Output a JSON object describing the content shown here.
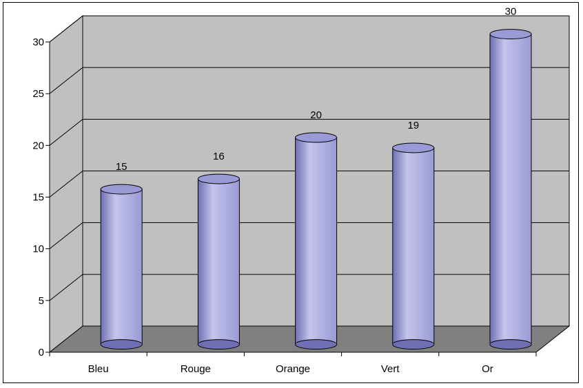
{
  "chart_data": {
    "type": "bar",
    "style": "3d-cylinder",
    "categories": [
      "Bleu",
      "Rouge",
      "Orange",
      "Vert",
      "Or"
    ],
    "values": [
      15,
      16,
      20,
      19,
      30
    ],
    "data_labels": [
      "15",
      "16",
      "20",
      "19",
      "30"
    ],
    "title": "",
    "xlabel": "",
    "ylabel": "",
    "ylim": [
      0,
      30
    ],
    "yticks": [
      0,
      5,
      10,
      15,
      20,
      25,
      30
    ],
    "grid": true,
    "legend": "none",
    "colors": {
      "bar": "#9a9ad6",
      "bar_dark": "#6f6fb4",
      "bar_light": "#c4c4ec",
      "wall": "#c0c0c0",
      "floor": "#808080",
      "grid": "#000000"
    }
  }
}
